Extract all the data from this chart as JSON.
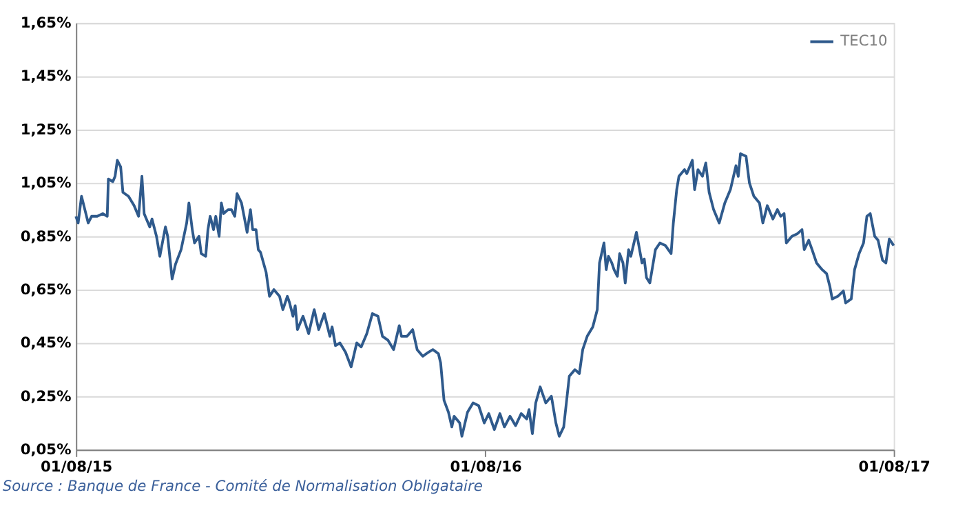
{
  "chart_data": {
    "type": "line",
    "annotations": [
      "Source : Banque de France - Comité de Normalisation Obligataire"
    ],
    "xlim": [
      "2015-08-01",
      "2017-08-01"
    ],
    "xticks": [
      {
        "value": "2015-08-01",
        "label": "01/08/15"
      },
      {
        "value": "2016-08-01",
        "label": "01/08/16"
      },
      {
        "value": "2017-08-01",
        "label": "01/08/17"
      }
    ],
    "ylim": [
      0.05,
      1.65
    ],
    "yticks": [
      {
        "value": 0.05,
        "label": "0,05%"
      },
      {
        "value": 0.25,
        "label": "0,25%"
      },
      {
        "value": 0.45,
        "label": "0,45%"
      },
      {
        "value": 0.65,
        "label": "0,65%"
      },
      {
        "value": 0.85,
        "label": "0,85%"
      },
      {
        "value": 1.05,
        "label": "1,05%"
      },
      {
        "value": 1.25,
        "label": "1,25%"
      },
      {
        "value": 1.45,
        "label": "1,45%"
      },
      {
        "value": 1.65,
        "label": "1,65%"
      }
    ],
    "grid": "y",
    "legend": "top right",
    "marker": "none",
    "line_style": "solid",
    "x": [
      "2015-08-01",
      "2015-08-03",
      "2015-08-06",
      "2015-08-09",
      "2015-08-12",
      "2015-08-15",
      "2015-08-20",
      "2015-08-25",
      "2015-08-29",
      "2015-08-30",
      "2015-09-03",
      "2015-09-05",
      "2015-09-07",
      "2015-09-10",
      "2015-09-12",
      "2015-09-17",
      "2015-09-22",
      "2015-09-26",
      "2015-09-29",
      "2015-10-01",
      "2015-10-06",
      "2015-10-08",
      "2015-10-12",
      "2015-10-15",
      "2015-10-20",
      "2015-10-22",
      "2015-10-26",
      "2015-10-29",
      "2015-11-03",
      "2015-11-08",
      "2015-11-10",
      "2015-11-13",
      "2015-11-15",
      "2015-11-19",
      "2015-11-21",
      "2015-11-25",
      "2015-11-27",
      "2015-11-29",
      "2015-12-02",
      "2015-12-04",
      "2015-12-07",
      "2015-12-09",
      "2015-12-11",
      "2015-12-15",
      "2015-12-18",
      "2015-12-21",
      "2015-12-23",
      "2015-12-27",
      "2015-12-30",
      "2016-01-01",
      "2016-01-04",
      "2016-01-06",
      "2016-01-09",
      "2016-01-11",
      "2016-01-13",
      "2016-01-18",
      "2016-01-21",
      "2016-01-25",
      "2016-01-30",
      "2016-02-02",
      "2016-02-06",
      "2016-02-08",
      "2016-02-11",
      "2016-02-13",
      "2016-02-15",
      "2016-02-20",
      "2016-02-25",
      "2016-03-01",
      "2016-03-05",
      "2016-03-10",
      "2016-03-15",
      "2016-03-17",
      "2016-03-20",
      "2016-03-24",
      "2016-03-29",
      "2016-04-03",
      "2016-04-08",
      "2016-04-12",
      "2016-04-17",
      "2016-04-22",
      "2016-04-27",
      "2016-05-01",
      "2016-05-06",
      "2016-05-11",
      "2016-05-16",
      "2016-05-18",
      "2016-05-23",
      "2016-05-28",
      "2016-06-01",
      "2016-06-06",
      "2016-06-11",
      "2016-06-15",
      "2016-06-20",
      "2016-06-22",
      "2016-06-25",
      "2016-06-29",
      "2016-07-02",
      "2016-07-04",
      "2016-07-09",
      "2016-07-11",
      "2016-07-16",
      "2016-07-21",
      "2016-07-26",
      "2016-07-31",
      "2016-08-04",
      "2016-08-09",
      "2016-08-14",
      "2016-08-18",
      "2016-08-23",
      "2016-08-28",
      "2016-09-02",
      "2016-09-07",
      "2016-09-09",
      "2016-09-12",
      "2016-09-15",
      "2016-09-19",
      "2016-09-24",
      "2016-09-29",
      "2016-10-03",
      "2016-10-06",
      "2016-10-10",
      "2016-10-15",
      "2016-10-20",
      "2016-10-24",
      "2016-10-27",
      "2016-10-31",
      "2016-11-05",
      "2016-11-09",
      "2016-11-11",
      "2016-11-15",
      "2016-11-17",
      "2016-11-19",
      "2016-11-22",
      "2016-11-24",
      "2016-11-27",
      "2016-11-29",
      "2016-12-02",
      "2016-12-04",
      "2016-12-07",
      "2016-12-09",
      "2016-12-14",
      "2016-12-19",
      "2016-12-21",
      "2016-12-23",
      "2016-12-26",
      "2016-12-31",
      "2017-01-04",
      "2017-01-09",
      "2017-01-14",
      "2017-01-16",
      "2017-01-19",
      "2017-01-21",
      "2017-01-26",
      "2017-01-28",
      "2017-02-02",
      "2017-02-04",
      "2017-02-07",
      "2017-02-11",
      "2017-02-14",
      "2017-02-17",
      "2017-02-21",
      "2017-02-26",
      "2017-03-03",
      "2017-03-08",
      "2017-03-13",
      "2017-03-15",
      "2017-03-17",
      "2017-03-22",
      "2017-03-25",
      "2017-03-29",
      "2017-04-03",
      "2017-04-06",
      "2017-04-10",
      "2017-04-15",
      "2017-04-19",
      "2017-04-22",
      "2017-04-25",
      "2017-04-27",
      "2017-05-02",
      "2017-05-07",
      "2017-05-11",
      "2017-05-13",
      "2017-05-17",
      "2017-05-20",
      "2017-05-24",
      "2017-05-29",
      "2017-06-02",
      "2017-06-05",
      "2017-06-07",
      "2017-06-12",
      "2017-06-17",
      "2017-06-19",
      "2017-06-24",
      "2017-06-27",
      "2017-07-01",
      "2017-07-05",
      "2017-07-08",
      "2017-07-11",
      "2017-07-15",
      "2017-07-18",
      "2017-07-22",
      "2017-07-25",
      "2017-07-28",
      "2017-08-01"
    ],
    "series": [
      {
        "name": "TEC10",
        "color": "#2f5a8c",
        "values": [
          0.925,
          0.9,
          1.0,
          0.95,
          0.9,
          0.925,
          0.925,
          0.935,
          0.925,
          1.065,
          1.055,
          1.075,
          1.135,
          1.11,
          1.015,
          1.0,
          0.965,
          0.925,
          1.075,
          0.935,
          0.885,
          0.915,
          0.85,
          0.775,
          0.885,
          0.85,
          0.69,
          0.745,
          0.8,
          0.9,
          0.975,
          0.875,
          0.825,
          0.85,
          0.785,
          0.775,
          0.875,
          0.925,
          0.875,
          0.925,
          0.85,
          0.975,
          0.935,
          0.95,
          0.95,
          0.925,
          1.01,
          0.975,
          0.91,
          0.865,
          0.95,
          0.875,
          0.875,
          0.8,
          0.79,
          0.715,
          0.625,
          0.65,
          0.625,
          0.575,
          0.625,
          0.6,
          0.55,
          0.59,
          0.5,
          0.55,
          0.485,
          0.575,
          0.5,
          0.56,
          0.475,
          0.51,
          0.44,
          0.45,
          0.415,
          0.36,
          0.45,
          0.435,
          0.485,
          0.56,
          0.55,
          0.475,
          0.46,
          0.425,
          0.515,
          0.475,
          0.475,
          0.5,
          0.425,
          0.4,
          0.415,
          0.425,
          0.41,
          0.375,
          0.235,
          0.19,
          0.135,
          0.175,
          0.15,
          0.1,
          0.19,
          0.225,
          0.215,
          0.15,
          0.185,
          0.125,
          0.185,
          0.135,
          0.175,
          0.14,
          0.185,
          0.165,
          0.2,
          0.11,
          0.225,
          0.285,
          0.225,
          0.25,
          0.15,
          0.1,
          0.135,
          0.325,
          0.35,
          0.335,
          0.425,
          0.475,
          0.51,
          0.575,
          0.75,
          0.825,
          0.725,
          0.775,
          0.75,
          0.725,
          0.7,
          0.785,
          0.75,
          0.675,
          0.8,
          0.775,
          0.865,
          0.75,
          0.765,
          0.695,
          0.675,
          0.8,
          0.825,
          0.815,
          0.785,
          0.9,
          1.025,
          1.075,
          1.1,
          1.085,
          1.135,
          1.025,
          1.1,
          1.075,
          1.125,
          1.015,
          0.95,
          0.9,
          0.975,
          1.025,
          1.115,
          1.075,
          1.16,
          1.15,
          1.05,
          1.0,
          0.975,
          0.9,
          0.965,
          0.915,
          0.95,
          0.925,
          0.935,
          0.825,
          0.85,
          0.86,
          0.875,
          0.8,
          0.835,
          0.8,
          0.75,
          0.725,
          0.71,
          0.66,
          0.615,
          0.625,
          0.645,
          0.6,
          0.615,
          0.725,
          0.785,
          0.825,
          0.925,
          0.935,
          0.85,
          0.835,
          0.76,
          0.75,
          0.84,
          0.815
        ]
      }
    ]
  }
}
